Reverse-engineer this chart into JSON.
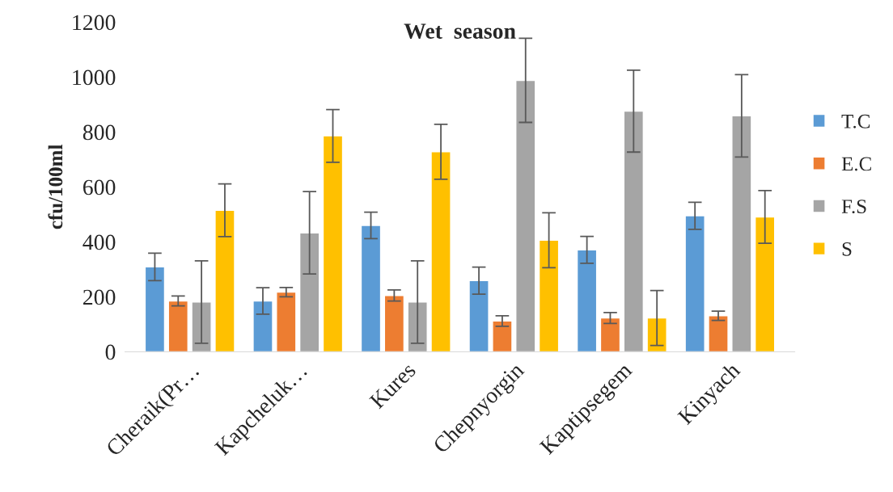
{
  "chart_data": {
    "type": "bar",
    "title": "Wet  season",
    "ylabel": "cfu/100ml",
    "categories": [
      "Cheraik(Pr…",
      "Kapcheluk…",
      "Kures",
      "Chepnyorgin",
      "Kaptipsegem",
      "Kinyach"
    ],
    "series": [
      {
        "name": "T.C",
        "color": "#5b9bd5",
        "values": [
          309,
          185,
          460,
          259,
          371,
          495
        ],
        "errors": [
          50,
          48,
          48,
          49,
          49,
          49
        ]
      },
      {
        "name": "E.C",
        "color": "#ed7d31",
        "values": [
          185,
          217,
          205,
          112,
          123,
          131
        ],
        "errors": [
          18,
          17,
          20,
          19,
          20,
          17
        ]
      },
      {
        "name": "F.S",
        "color": "#a5a5a5",
        "values": [
          181,
          433,
          181,
          988,
          876,
          859
        ],
        "errors": [
          150,
          150,
          150,
          153,
          149,
          150
        ]
      },
      {
        "name": "S",
        "color": "#ffc000",
        "values": [
          515,
          786,
          728,
          406,
          123,
          491
        ],
        "errors": [
          96,
          96,
          100,
          100,
          100,
          96
        ]
      }
    ],
    "ylim": [
      0,
      1200
    ],
    "yticks": [
      0,
      200,
      400,
      600,
      800,
      1000,
      1200
    ],
    "grid": false,
    "legend": "right"
  }
}
